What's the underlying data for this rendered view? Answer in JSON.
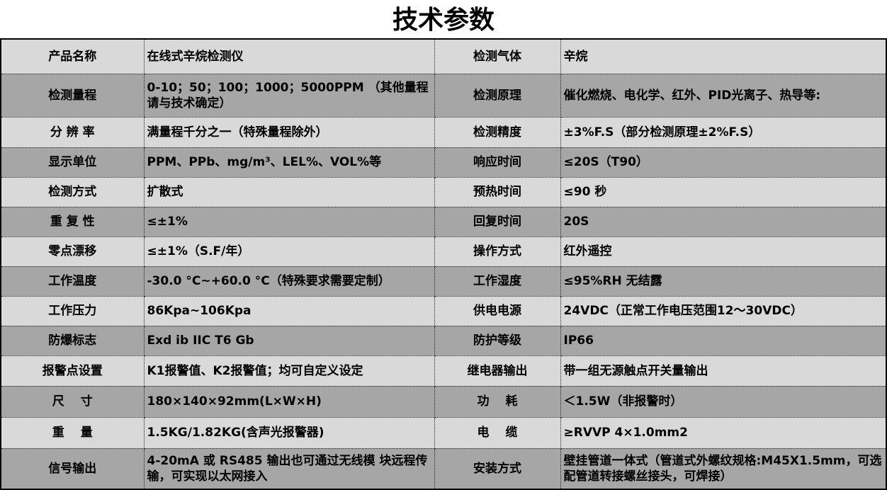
{
  "title": "技术参数",
  "colors": {
    "light_row": "#d9d9d9",
    "dark_row": "#a6a6a6"
  },
  "rows": [
    {
      "k1": "产品名称",
      "v1": "在线式辛烷检测仪",
      "k2": "检测气体",
      "v2": "辛烷"
    },
    {
      "k1": "检测量程",
      "v1": "0-10；50；100；1000；5000PPM （其他量程请与技术确定）",
      "k2": "检测原理",
      "v2": "催化燃烧、电化学、红外、PID光离子、热导等:"
    },
    {
      "k1": "分 辨 率",
      "v1": "满量程千分之一（特殊量程除外）",
      "k2": "检测精度",
      "v2": "±3%F.S（部分检测原理±2%F.S）"
    },
    {
      "k1": "显示单位",
      "v1": "PPM、PPb、mg/m³、LEL%、VOL%等",
      "k2": "响应时间",
      "v2": "≤20S（T90）"
    },
    {
      "k1": "检测方式",
      "v1": "扩散式",
      "k2": "预热时间",
      "v2": "≤90 秒"
    },
    {
      "k1": "重 复 性",
      "v1": "≤±1%",
      "k2": "回复时间",
      "v2": "20S"
    },
    {
      "k1": "零点漂移",
      "v1": "≤±1%（S.F/年）",
      "k2": "操作方式",
      "v2": "红外遥控"
    },
    {
      "k1": "工作温度",
      "v1": "-30.0 °C~+60.0 °C（特殊要求需要定制）",
      "k2": "工作湿度",
      "v2": "≤95%RH 无结露"
    },
    {
      "k1": "工作压力",
      "v1": "86Kpa~106Kpa",
      "k2": "供电电源",
      "v2": "24VDC（正常工作电压范围12～30VDC）"
    },
    {
      "k1": "防爆标志",
      "v1": "Exd ib IIC T6 Gb",
      "k2": "防护等级",
      "v2": "IP66"
    },
    {
      "k1": "报警点设置",
      "v1": "K1报警值、K2报警值；均可自定义设定",
      "k2": "继电器输出",
      "v2": "带一组无源触点开关量输出"
    },
    {
      "k1": "尺　 寸",
      "v1": "180×140×92mm(L×W×H)",
      "k2": "功　 耗",
      "v2": "＜1.5W（非报警时）"
    },
    {
      "k1": "重　 量",
      "v1": "1.5KG/1.82KG(含声光报警器)",
      "k2": "电　 缆",
      "v2": "≥RVVP 4×1.0mm2"
    },
    {
      "k1": "信号输出",
      "v1": "4-20mA 或 RS485 输出也可通过无线模 块远程传输，可实现以太网接入",
      "k2": "安装方式",
      "v2": "壁挂管道一体式（管道式外螺纹规格:M45X1.5mm，可选配管道转接螺丝接头，可焊接）"
    }
  ]
}
